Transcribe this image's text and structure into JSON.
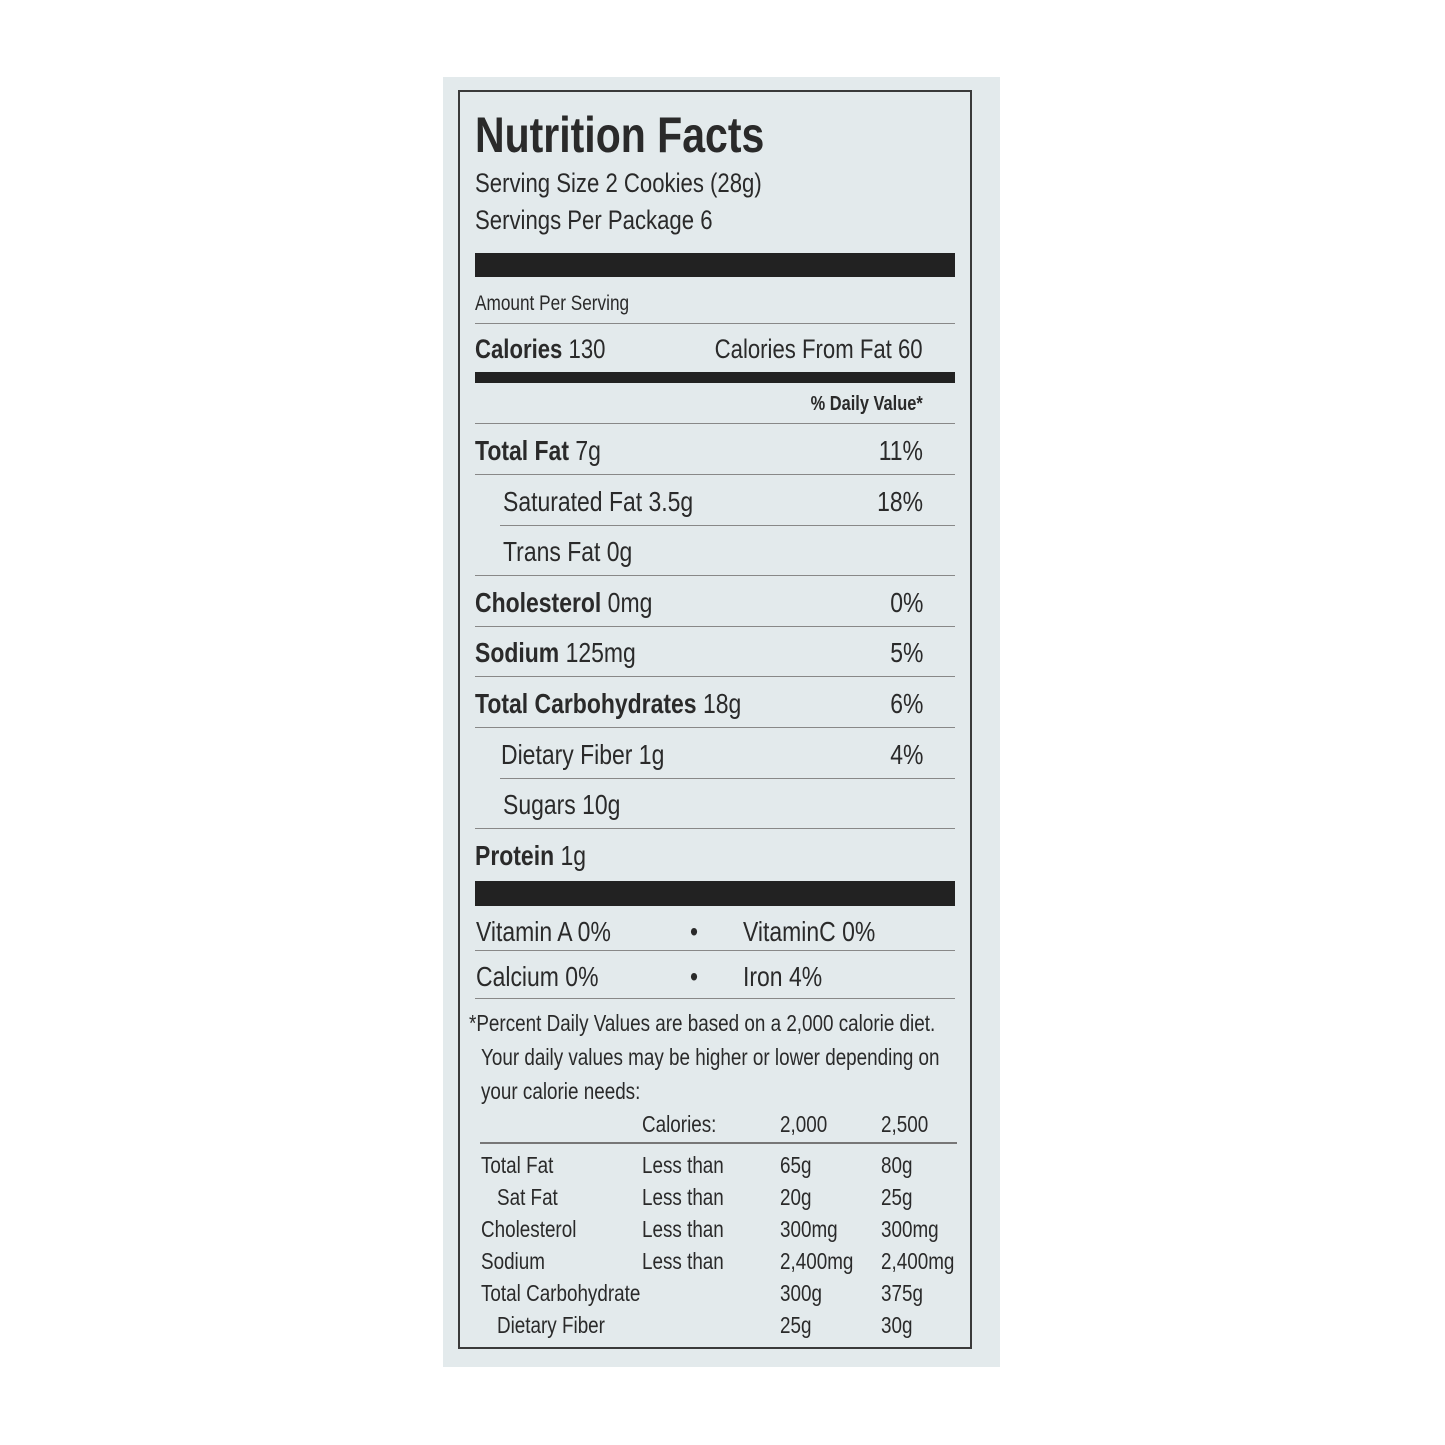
{
  "title": "Nutrition Facts",
  "serving_size": "Serving Size 2 Cookies (28g)",
  "servings_per_package": "Servings Per Package 6",
  "amount_per_serving": "Amount Per Serving",
  "calories": {
    "label": "Calories",
    "value": "130",
    "from_fat_label": "Calories From Fat",
    "from_fat_value": "60"
  },
  "daily_value_header": "% Daily Value*",
  "nutrients": [
    {
      "label": "Total Fat",
      "amount": "7g",
      "dv": "11%",
      "bold": true
    },
    {
      "label": "Saturated Fat",
      "amount": "3.5g",
      "dv": "18%",
      "bold": false
    },
    {
      "label": "Trans Fat",
      "amount": "0g",
      "dv": "",
      "bold": false
    },
    {
      "label": "Cholesterol",
      "amount": "0mg",
      "dv": "0%",
      "bold": true
    },
    {
      "label": "Sodium",
      "amount": "125mg",
      "dv": "5%",
      "bold": true
    },
    {
      "label": "Total Carbohydrates",
      "amount": "18g",
      "dv": "6%",
      "bold": true
    },
    {
      "label": "Dietary Fiber",
      "amount": "1g",
      "dv": "4%",
      "bold": false
    },
    {
      "label": "Sugars",
      "amount": "10g",
      "dv": "",
      "bold": false
    },
    {
      "label": "Protein",
      "amount": "1g",
      "dv": "",
      "bold": true
    }
  ],
  "vitamins": [
    {
      "left": "Vitamin A 0%",
      "bullet": "•",
      "right": "VitaminC 0%"
    },
    {
      "left": "Calcium 0%",
      "bullet": "•",
      "right": "Iron 4%"
    }
  ],
  "footnote": [
    "*Percent Daily Values are based on a 2,000 calorie diet.",
    "Your daily values may be higher or lower depending on",
    "your calorie needs:"
  ],
  "dv_table": {
    "header": [
      "",
      "Calories:",
      "2,000",
      "2,500"
    ],
    "rows": [
      [
        "Total Fat",
        "Less than",
        "65g",
        "80g"
      ],
      [
        "Sat Fat",
        "Less than",
        "20g",
        "25g"
      ],
      [
        "Cholesterol",
        "Less than",
        "300mg",
        "300mg"
      ],
      [
        "Sodium",
        "Less than",
        "2,400mg",
        "2,400mg"
      ],
      [
        "Total Carbohydrate",
        "",
        "300g",
        "375g"
      ],
      [
        "Dietary Fiber",
        "",
        "25g",
        "30g"
      ]
    ]
  }
}
